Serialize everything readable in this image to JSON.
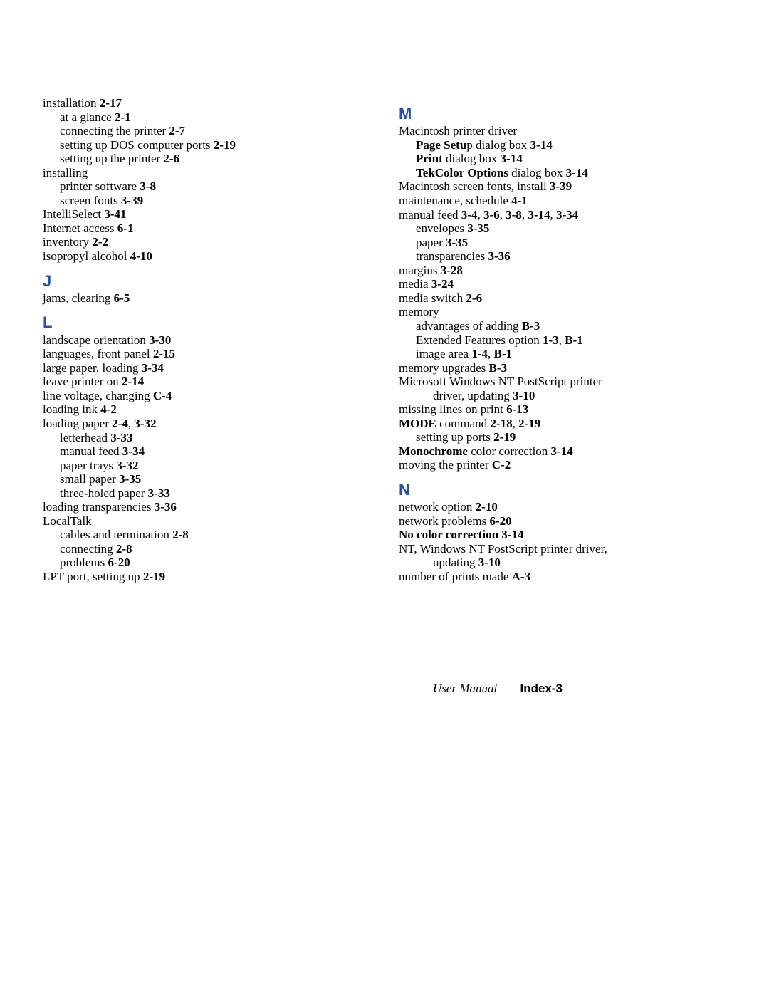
{
  "colors": {
    "heading": "#2050c0",
    "text": "#000000",
    "background": "#ffffff"
  },
  "typography": {
    "body_font": "Palatino",
    "heading_font": "Arial",
    "body_size_pt": 13,
    "heading_size_pt": 17
  },
  "left_column": [
    {
      "type": "entry",
      "indent": 0,
      "runs": [
        {
          "t": "installation   "
        },
        {
          "t": "2-17",
          "b": true
        }
      ]
    },
    {
      "type": "entry",
      "indent": 1,
      "runs": [
        {
          "t": "at a glance   "
        },
        {
          "t": "2-1",
          "b": true
        }
      ]
    },
    {
      "type": "entry",
      "indent": 1,
      "runs": [
        {
          "t": "connecting the printer   "
        },
        {
          "t": "2-7",
          "b": true
        }
      ]
    },
    {
      "type": "entry",
      "indent": 1,
      "runs": [
        {
          "t": "setting up DOS computer ports   "
        },
        {
          "t": "2-19",
          "b": true
        }
      ]
    },
    {
      "type": "entry",
      "indent": 1,
      "runs": [
        {
          "t": "setting up the printer   "
        },
        {
          "t": "2-6",
          "b": true
        }
      ]
    },
    {
      "type": "entry",
      "indent": 0,
      "runs": [
        {
          "t": "installing"
        }
      ]
    },
    {
      "type": "entry",
      "indent": 1,
      "runs": [
        {
          "t": "printer software   "
        },
        {
          "t": "3-8",
          "b": true
        }
      ]
    },
    {
      "type": "entry",
      "indent": 1,
      "runs": [
        {
          "t": "screen fonts   "
        },
        {
          "t": "3-39",
          "b": true
        }
      ]
    },
    {
      "type": "entry",
      "indent": 0,
      "runs": [
        {
          "t": "IntelliSelect   "
        },
        {
          "t": "3-41",
          "b": true
        }
      ]
    },
    {
      "type": "entry",
      "indent": 0,
      "runs": [
        {
          "t": "Internet access   "
        },
        {
          "t": "6-1",
          "b": true
        }
      ]
    },
    {
      "type": "entry",
      "indent": 0,
      "runs": [
        {
          "t": "inventory   "
        },
        {
          "t": "2-2",
          "b": true
        }
      ]
    },
    {
      "type": "entry",
      "indent": 0,
      "runs": [
        {
          "t": "isopropyl alcohol   "
        },
        {
          "t": "4-10",
          "b": true
        }
      ]
    },
    {
      "type": "letter",
      "text": "J"
    },
    {
      "type": "entry",
      "indent": 0,
      "runs": [
        {
          "t": "jams, clearing   "
        },
        {
          "t": "6-5",
          "b": true
        }
      ]
    },
    {
      "type": "letter",
      "text": "L"
    },
    {
      "type": "entry",
      "indent": 0,
      "runs": [
        {
          "t": "landscape orientation   "
        },
        {
          "t": "3-30",
          "b": true
        }
      ]
    },
    {
      "type": "entry",
      "indent": 0,
      "runs": [
        {
          "t": "languages, front panel   "
        },
        {
          "t": "2-15",
          "b": true
        }
      ]
    },
    {
      "type": "entry",
      "indent": 0,
      "runs": [
        {
          "t": "large paper, loading   "
        },
        {
          "t": "3-34",
          "b": true
        }
      ]
    },
    {
      "type": "entry",
      "indent": 0,
      "runs": [
        {
          "t": "leave printer on   "
        },
        {
          "t": "2-14",
          "b": true
        }
      ]
    },
    {
      "type": "entry",
      "indent": 0,
      "runs": [
        {
          "t": "line voltage, changing   "
        },
        {
          "t": "C-4",
          "b": true
        }
      ]
    },
    {
      "type": "entry",
      "indent": 0,
      "runs": [
        {
          "t": "loading ink   "
        },
        {
          "t": "4-2",
          "b": true
        }
      ]
    },
    {
      "type": "entry",
      "indent": 0,
      "runs": [
        {
          "t": "loading paper   "
        },
        {
          "t": "2-4",
          "b": true
        },
        {
          "t": ",   "
        },
        {
          "t": "3-32",
          "b": true
        }
      ]
    },
    {
      "type": "entry",
      "indent": 1,
      "runs": [
        {
          "t": "letterhead   "
        },
        {
          "t": "3-33",
          "b": true
        }
      ]
    },
    {
      "type": "entry",
      "indent": 1,
      "runs": [
        {
          "t": "manual feed   "
        },
        {
          "t": "3-34",
          "b": true
        }
      ]
    },
    {
      "type": "entry",
      "indent": 1,
      "runs": [
        {
          "t": "paper trays   "
        },
        {
          "t": "3-32",
          "b": true
        }
      ]
    },
    {
      "type": "entry",
      "indent": 1,
      "runs": [
        {
          "t": "small paper   "
        },
        {
          "t": "3-35",
          "b": true
        }
      ]
    },
    {
      "type": "entry",
      "indent": 1,
      "runs": [
        {
          "t": "three-holed paper   "
        },
        {
          "t": "3-33",
          "b": true
        }
      ]
    },
    {
      "type": "entry",
      "indent": 0,
      "runs": [
        {
          "t": "loading transparencies   "
        },
        {
          "t": "3-36",
          "b": true
        }
      ]
    },
    {
      "type": "entry",
      "indent": 0,
      "runs": [
        {
          "t": "LocalTalk"
        }
      ]
    },
    {
      "type": "entry",
      "indent": 1,
      "runs": [
        {
          "t": "cables and termination   "
        },
        {
          "t": "2-8",
          "b": true
        }
      ]
    },
    {
      "type": "entry",
      "indent": 1,
      "runs": [
        {
          "t": "connecting   "
        },
        {
          "t": "2-8",
          "b": true
        }
      ]
    },
    {
      "type": "entry",
      "indent": 1,
      "runs": [
        {
          "t": "problems   "
        },
        {
          "t": "6-20",
          "b": true
        }
      ]
    },
    {
      "type": "entry",
      "indent": 0,
      "runs": [
        {
          "t": "LPT port, setting up   "
        },
        {
          "t": "2-19",
          "b": true
        }
      ]
    }
  ],
  "right_column": [
    {
      "type": "letter",
      "text": "M"
    },
    {
      "type": "entry",
      "indent": 0,
      "runs": [
        {
          "t": "Macintosh printer driver"
        }
      ]
    },
    {
      "type": "entry",
      "indent": 1,
      "runs": [
        {
          "t": "Page Setu",
          "b": true
        },
        {
          "t": "p dialog box   "
        },
        {
          "t": "3-14",
          "b": true
        }
      ]
    },
    {
      "type": "entry",
      "indent": 1,
      "runs": [
        {
          "t": "Print",
          "b": true
        },
        {
          "t": " dialog box   "
        },
        {
          "t": "3-14",
          "b": true
        }
      ]
    },
    {
      "type": "entry",
      "indent": 1,
      "runs": [
        {
          "t": "TekColor Options",
          "b": true
        },
        {
          "t": " dialog box   "
        },
        {
          "t": "3-14",
          "b": true
        }
      ]
    },
    {
      "type": "entry",
      "indent": 0,
      "runs": [
        {
          "t": "Macintosh screen fonts, install   "
        },
        {
          "t": "3-39",
          "b": true
        }
      ]
    },
    {
      "type": "entry",
      "indent": 0,
      "runs": [
        {
          "t": "maintenance, schedule   "
        },
        {
          "t": "4-1",
          "b": true
        }
      ]
    },
    {
      "type": "entry",
      "indent": 0,
      "runs": [
        {
          "t": "manual feed   "
        },
        {
          "t": "3-4",
          "b": true
        },
        {
          "t": ",   "
        },
        {
          "t": "3-6",
          "b": true
        },
        {
          "t": ",   "
        },
        {
          "t": "3-8",
          "b": true
        },
        {
          "t": ",   "
        },
        {
          "t": "3-14",
          "b": true
        },
        {
          "t": ",   "
        },
        {
          "t": "3-34",
          "b": true
        }
      ]
    },
    {
      "type": "entry",
      "indent": 1,
      "runs": [
        {
          "t": "envelopes   "
        },
        {
          "t": "3-35",
          "b": true
        }
      ]
    },
    {
      "type": "entry",
      "indent": 1,
      "runs": [
        {
          "t": "paper   "
        },
        {
          "t": "3-35",
          "b": true
        }
      ]
    },
    {
      "type": "entry",
      "indent": 1,
      "runs": [
        {
          "t": "transparencies   "
        },
        {
          "t": "3-36",
          "b": true
        }
      ]
    },
    {
      "type": "entry",
      "indent": 0,
      "runs": [
        {
          "t": "margins   "
        },
        {
          "t": "3-28",
          "b": true
        }
      ]
    },
    {
      "type": "entry",
      "indent": 0,
      "runs": [
        {
          "t": "media   "
        },
        {
          "t": "3-24",
          "b": true
        }
      ]
    },
    {
      "type": "entry",
      "indent": 0,
      "runs": [
        {
          "t": "media switch   "
        },
        {
          "t": "2-6",
          "b": true
        }
      ]
    },
    {
      "type": "entry",
      "indent": 0,
      "runs": [
        {
          "t": "memory"
        }
      ]
    },
    {
      "type": "entry",
      "indent": 1,
      "runs": [
        {
          "t": "advantages of adding   "
        },
        {
          "t": "B-3",
          "b": true
        }
      ]
    },
    {
      "type": "entry",
      "indent": 1,
      "runs": [
        {
          "t": "Extended Features option   "
        },
        {
          "t": "1-3",
          "b": true
        },
        {
          "t": ",   "
        },
        {
          "t": "B-1",
          "b": true
        }
      ]
    },
    {
      "type": "entry",
      "indent": 1,
      "runs": [
        {
          "t": "image area   "
        },
        {
          "t": "1-4",
          "b": true
        },
        {
          "t": ",   "
        },
        {
          "t": "B-1",
          "b": true
        }
      ]
    },
    {
      "type": "entry",
      "indent": 0,
      "runs": [
        {
          "t": "memory upgrades   "
        },
        {
          "t": "B-3",
          "b": true
        }
      ]
    },
    {
      "type": "entry",
      "indent": 0,
      "runs": [
        {
          "t": "Microsoft Windows NT PostScript printer "
        }
      ]
    },
    {
      "type": "entry",
      "indent": 2,
      "runs": [
        {
          "t": "driver, updating   "
        },
        {
          "t": "3-10",
          "b": true
        }
      ]
    },
    {
      "type": "entry",
      "indent": 0,
      "runs": [
        {
          "t": "missing lines on print   "
        },
        {
          "t": "6-13",
          "b": true
        }
      ]
    },
    {
      "type": "entry",
      "indent": 0,
      "runs": [
        {
          "t": "MODE",
          "b": true
        },
        {
          "t": " command   "
        },
        {
          "t": "2-18",
          "b": true
        },
        {
          "t": ",   "
        },
        {
          "t": "2-19",
          "b": true
        }
      ]
    },
    {
      "type": "entry",
      "indent": 1,
      "runs": [
        {
          "t": "setting up ports   "
        },
        {
          "t": "2-19",
          "b": true
        }
      ]
    },
    {
      "type": "entry",
      "indent": 0,
      "runs": [
        {
          "t": "Monochrome",
          "b": true
        },
        {
          "t": " color correction   "
        },
        {
          "t": "3-14",
          "b": true
        }
      ]
    },
    {
      "type": "entry",
      "indent": 0,
      "runs": [
        {
          "t": "moving the printer   "
        },
        {
          "t": "C-2",
          "b": true
        }
      ]
    },
    {
      "type": "letter",
      "text": "N"
    },
    {
      "type": "entry",
      "indent": 0,
      "runs": [
        {
          "t": "network option   "
        },
        {
          "t": "2-10",
          "b": true
        }
      ]
    },
    {
      "type": "entry",
      "indent": 0,
      "runs": [
        {
          "t": "network problems   "
        },
        {
          "t": "6-20",
          "b": true
        }
      ]
    },
    {
      "type": "entry",
      "indent": 0,
      "runs": [
        {
          "t": "No color correction   3-14",
          "b": true
        }
      ]
    },
    {
      "type": "entry",
      "indent": 0,
      "runs": [
        {
          "t": "NT, Windows NT PostScript printer driver, "
        }
      ]
    },
    {
      "type": "entry",
      "indent": 2,
      "runs": [
        {
          "t": "updating   "
        },
        {
          "t": "3-10",
          "b": true
        }
      ]
    },
    {
      "type": "entry",
      "indent": 0,
      "runs": [
        {
          "t": "number of prints made   "
        },
        {
          "t": "A-3",
          "b": true
        }
      ]
    }
  ],
  "footer": {
    "italic": "User Manual",
    "bold": "Index-3"
  }
}
